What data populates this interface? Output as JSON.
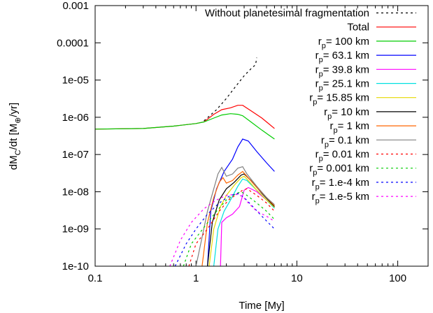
{
  "chart_data": {
    "type": "line",
    "title": "",
    "xlabel": "Time [My]",
    "ylabel": {
      "base": "dM",
      "sub": "C",
      "mid": "/dt [M",
      "sub2": "⊕",
      "tail": "/yr]"
    },
    "xscale": "log",
    "yscale": "log",
    "xlim": [
      0.1,
      200
    ],
    "ylim": [
      1e-10,
      0.001
    ],
    "grid": false,
    "legend_position": "top-right",
    "xticks": [
      {
        "value": 0.1,
        "label": "0.1"
      },
      {
        "value": 1,
        "label": "1"
      },
      {
        "value": 10,
        "label": "10"
      },
      {
        "value": 100,
        "label": "100"
      }
    ],
    "yticks": [
      {
        "value": 1e-10,
        "label": "1e-10"
      },
      {
        "value": 1e-09,
        "label": "1e-09"
      },
      {
        "value": 1e-08,
        "label": "1e-08"
      },
      {
        "value": 1e-07,
        "label": "1e-07"
      },
      {
        "value": 1e-06,
        "label": "1e-06"
      },
      {
        "value": 1e-05,
        "label": "1e-05"
      },
      {
        "value": 0.0001,
        "label": "0.0001"
      },
      {
        "value": 0.001,
        "label": "0.001"
      }
    ],
    "series": [
      {
        "name": "Without planetesimal fragmentation",
        "color": "#000000",
        "dash": "dotted",
        "x": [
          1.2,
          1.6,
          2.0,
          2.5,
          3.0,
          3.5,
          3.9,
          4.0
        ],
        "y": [
          8e-07,
          1.6e-06,
          3.2e-06,
          7e-06,
          1.3e-05,
          2e-05,
          2.6e-05,
          4e-05
        ]
      },
      {
        "name": "Total",
        "color": "#ff0000",
        "dash": "solid",
        "x": [
          0.1,
          0.3,
          0.6,
          1.0,
          1.2,
          1.5,
          1.8,
          2.2,
          2.6,
          2.9,
          3.5,
          4.5,
          6.0
        ],
        "y": [
          4.8e-07,
          5e-07,
          5.8e-07,
          6.8e-07,
          7.5e-07,
          1.2e-06,
          1.6e-06,
          1.8e-06,
          2.1e-06,
          2.1e-06,
          1.5e-06,
          9.5e-07,
          5e-07
        ]
      },
      {
        "name": "= 100 km",
        "rp": true,
        "color": "#00cc00",
        "dash": "solid",
        "x": [
          0.1,
          0.3,
          0.6,
          1.0,
          1.2,
          1.5,
          1.8,
          2.2,
          2.6,
          2.9,
          3.5,
          4.5,
          6.0
        ],
        "y": [
          4.8e-07,
          5e-07,
          5.8e-07,
          6.8e-07,
          7.5e-07,
          9.5e-07,
          1.15e-06,
          1.25e-06,
          1.2e-06,
          1.1e-06,
          7.5e-07,
          4.5e-07,
          2.6e-07
        ]
      },
      {
        "name": "= 63.1 km",
        "rp": true,
        "color": "#0000ff",
        "dash": "solid",
        "x": [
          1.3,
          1.4,
          1.6,
          1.9,
          2.3,
          2.6,
          2.9,
          3.3,
          4.0,
          5.0,
          6.0
        ],
        "y": [
          1e-10,
          3e-09,
          1.2e-08,
          3.5e-08,
          7.5e-08,
          1.6e-07,
          2.6e-07,
          2.3e-07,
          1.2e-07,
          6e-08,
          3.5e-08
        ]
      },
      {
        "name": "= 39.8 km",
        "rp": true,
        "color": "#ff00ff",
        "dash": "solid",
        "x": [
          1.75,
          1.8,
          2.0,
          2.3,
          2.7,
          3.0,
          3.3,
          4.0,
          5.0,
          6.0
        ],
        "y": [
          1e-10,
          1.5e-09,
          2e-09,
          2.5e-09,
          4e-09,
          1.1e-08,
          1.3e-08,
          1e-08,
          6e-09,
          3.8e-09
        ]
      },
      {
        "name": "= 25.1 km",
        "rp": true,
        "color": "#00e0e0",
        "dash": "solid",
        "x": [
          1.5,
          1.65,
          1.9,
          2.2,
          2.6,
          2.9,
          3.2,
          4.0,
          5.0,
          6.0
        ],
        "y": [
          1e-10,
          1e-09,
          3e-09,
          6e-09,
          1.4e-08,
          2.2e-08,
          2e-08,
          1.1e-08,
          6e-09,
          3.6e-09
        ]
      },
      {
        "name": "= 15.85 km",
        "rp": true,
        "color": "#e6d800",
        "dash": "solid",
        "x": [
          1.35,
          1.5,
          1.75,
          2.0,
          2.4,
          2.8,
          3.0,
          3.3,
          4.0,
          5.0,
          6.0
        ],
        "y": [
          1e-10,
          1e-09,
          4e-09,
          8e-09,
          1.5e-08,
          2.4e-08,
          2.6e-08,
          2e-08,
          1.1e-08,
          6e-09,
          3.8e-09
        ]
      },
      {
        "name": "= 10 km",
        "rp": true,
        "color": "#000000",
        "dash": "solid",
        "x": [
          1.3,
          1.45,
          1.7,
          2.0,
          2.4,
          2.8,
          3.0,
          3.5,
          4.5,
          6.0
        ],
        "y": [
          1e-10,
          1.5e-09,
          6e-09,
          1.2e-08,
          1.8e-08,
          2.8e-08,
          3e-08,
          2e-08,
          9e-09,
          4e-09
        ]
      },
      {
        "name": "= 1 km",
        "rp": true,
        "color": "#ff6600",
        "dash": "solid",
        "x": [
          1.15,
          1.3,
          1.5,
          1.7,
          1.85,
          2.0,
          2.3,
          2.6,
          2.9,
          3.2,
          4.0,
          5.0,
          6.0
        ],
        "y": [
          1e-10,
          1.5e-09,
          7e-09,
          1.8e-08,
          2.4e-08,
          1.7e-08,
          2e-08,
          2.8e-08,
          3.5e-08,
          2.6e-08,
          1.3e-08,
          7e-09,
          4.2e-09
        ]
      },
      {
        "name": "= 0.1 km",
        "rp": true,
        "color": "#808080",
        "dash": "solid",
        "x": [
          1.0,
          1.15,
          1.3,
          1.5,
          1.65,
          1.8,
          2.0,
          2.3,
          2.6,
          2.9,
          3.2,
          4.0,
          5.0,
          6.0
        ],
        "y": [
          1e-10,
          6e-10,
          3e-09,
          1.2e-08,
          3e-08,
          4.5e-08,
          2.6e-08,
          3e-08,
          4.3e-08,
          4.7e-08,
          3e-08,
          1.4e-08,
          7e-09,
          4.5e-09
        ]
      },
      {
        "name": "= 0.01 km",
        "rp": true,
        "color": "#ff0000",
        "dash": "dotted",
        "x": [
          0.85,
          1.0,
          1.3,
          1.7,
          2.1,
          2.6,
          2.9,
          3.2,
          4.0,
          5.0,
          6.0
        ],
        "y": [
          1e-10,
          4e-10,
          1e-09,
          3e-09,
          6e-09,
          9e-09,
          1.1e-08,
          1.2e-08,
          8e-09,
          5e-09,
          3e-09
        ]
      },
      {
        "name": "= 0.001 km",
        "rp": true,
        "color": "#00cc00",
        "dash": "dotted",
        "x": [
          0.75,
          0.9,
          1.2,
          1.6,
          2.0,
          2.5,
          2.8,
          3.2,
          4.0,
          5.0,
          6.0
        ],
        "y": [
          1e-10,
          4e-10,
          1.1e-09,
          3e-09,
          6e-09,
          9e-09,
          1e-08,
          8e-09,
          5e-09,
          3e-09,
          1.8e-09
        ]
      },
      {
        "name": "= 1.e-4 km",
        "rp": true,
        "color": "#0000ff",
        "dash": "dotted",
        "x": [
          0.62,
          0.8,
          1.0,
          1.3,
          1.7,
          2.2,
          2.6,
          3.0,
          3.5,
          4.5,
          6.0
        ],
        "y": [
          1e-10,
          4e-10,
          1e-09,
          2.5e-09,
          5e-09,
          8e-09,
          9e-09,
          7e-09,
          4.5e-09,
          2.2e-09,
          1e-09
        ]
      },
      {
        "name": "= 1.e-5 km",
        "rp": true,
        "color": "#ff00ff",
        "dash": "dotted",
        "x": [
          0.55,
          0.7,
          0.9,
          1.2,
          1.6,
          2.0,
          2.5,
          2.9,
          3.3,
          4.0,
          5.0,
          6.0
        ],
        "y": [
          1e-10,
          5e-10,
          1.5e-09,
          3.5e-09,
          6e-09,
          8e-09,
          8.5e-09,
          7.5e-09,
          5e-09,
          3e-09,
          2.2e-09,
          1.6e-09
        ]
      }
    ]
  }
}
